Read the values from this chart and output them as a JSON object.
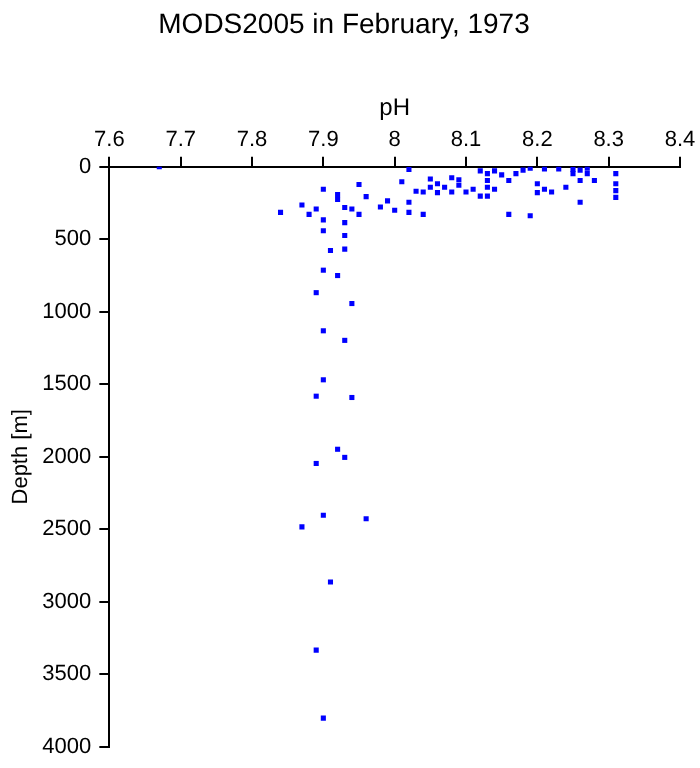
{
  "chart_data": {
    "type": "scatter",
    "title": "MODS2005 in February, 1973",
    "xlabel": "pH",
    "ylabel": "Depth [m]",
    "xlim": [
      7.6,
      8.4
    ],
    "xticks": [
      7.6,
      7.7,
      7.8,
      7.9,
      8,
      8.1,
      8.2,
      8.3,
      8.4
    ],
    "ylim": [
      4000,
      0
    ],
    "yticks": [
      0,
      500,
      1000,
      1500,
      2000,
      2500,
      3000,
      3500,
      4000
    ],
    "marker": "square",
    "series": [
      {
        "color": "#0000ff",
        "x": [
          7.67,
          7.84,
          7.87,
          7.88,
          7.89,
          7.9,
          7.9,
          7.9,
          7.91,
          7.9,
          7.92,
          7.92,
          7.92,
          7.89,
          7.93,
          7.94,
          7.93,
          7.93,
          7.93,
          7.94,
          7.95,
          7.95,
          7.96,
          7.98,
          7.99,
          8.0,
          8.01,
          8.02,
          8.02,
          8.02,
          8.03,
          8.04,
          8.04,
          8.05,
          8.05,
          8.06,
          8.06,
          8.07,
          8.08,
          8.08,
          8.09,
          8.09,
          8.1,
          8.11,
          8.12,
          8.12,
          8.13,
          8.13,
          8.13,
          8.13,
          8.14,
          8.14,
          8.16,
          8.15,
          8.16,
          8.17,
          8.18,
          8.19,
          8.19,
          8.2,
          8.2,
          8.21,
          8.21,
          8.22,
          8.23,
          8.24,
          8.25,
          8.25,
          8.26,
          8.26,
          8.26,
          8.27,
          8.27,
          8.28,
          8.31,
          8.31,
          8.31,
          8.31,
          7.9,
          7.93,
          7.9,
          7.89,
          7.94,
          7.92,
          7.93,
          7.89,
          7.9,
          7.87,
          7.96,
          7.91,
          7.89,
          7.9
        ],
        "values": [
          0,
          314,
          263,
          328,
          291,
          155,
          366,
          441,
          577,
          713,
          192,
          225,
          750,
          868,
          281,
          291,
          385,
          474,
          568,
          943,
          122,
          328,
          206,
          277,
          235,
          300,
          103,
          19,
          244,
          314,
          169,
          328,
          174,
          84,
          141,
          117,
          178,
          141,
          75,
          174,
          89,
          127,
          174,
          155,
          28,
          202,
          202,
          47,
          94,
          141,
          28,
          155,
          328,
          56,
          94,
          47,
          23,
          338,
          9,
          117,
          178,
          14,
          155,
          174,
          14,
          141,
          19,
          47,
          244,
          94,
          23,
          47,
          9,
          94,
          47,
          117,
          164,
          211,
          1131,
          1197,
          1469,
          1582,
          1591,
          1948,
          2004,
          2046,
          2403,
          2483,
          2427,
          2863,
          3333,
          3802
        ]
      }
    ]
  }
}
